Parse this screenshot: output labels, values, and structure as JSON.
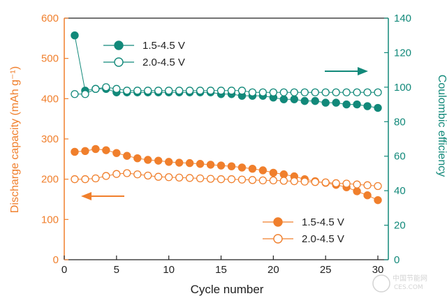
{
  "chart_data": {
    "type": "scatter",
    "title": "",
    "xlabel": "Cycle number",
    "ylabel_left": "Discharge capacity (mAh g⁻¹)",
    "ylabel_right": "Coulombic efficiency",
    "xlim": [
      0,
      31
    ],
    "ylim_left": [
      0,
      600
    ],
    "ylim_right": [
      0,
      140
    ],
    "x_ticks": [
      0,
      5,
      10,
      15,
      20,
      25,
      30
    ],
    "y_left_ticks": [
      0,
      100,
      200,
      300,
      400,
      500,
      600
    ],
    "y_right_ticks": [
      0,
      20,
      40,
      60,
      80,
      100,
      120,
      140
    ],
    "grid": false,
    "colors": {
      "capacity": "#f07f2c",
      "efficiency": "#12897a",
      "axis": "#222222"
    },
    "legend_top": [
      "1.5-4.5 V",
      "2.0-4.5 V"
    ],
    "legend_bottom": [
      "1.5-4.5 V",
      "2.0-4.5 V"
    ],
    "x": [
      1,
      2,
      3,
      4,
      5,
      6,
      7,
      8,
      9,
      10,
      11,
      12,
      13,
      14,
      15,
      16,
      17,
      18,
      19,
      20,
      21,
      22,
      23,
      24,
      25,
      26,
      27,
      28,
      29,
      30
    ],
    "series": [
      {
        "name": "1.5-4.5 V",
        "axis": "left",
        "marker": "filled",
        "color": "#f07f2c",
        "values": [
          268,
          270,
          275,
          272,
          265,
          258,
          252,
          248,
          246,
          243,
          241,
          240,
          238,
          236,
          234,
          232,
          229,
          226,
          222,
          216,
          212,
          207,
          200,
          195,
          191,
          186,
          180,
          170,
          160,
          148
        ]
      },
      {
        "name": "2.0-4.5 V",
        "axis": "left",
        "marker": "open",
        "color": "#f07f2c",
        "values": [
          200,
          200,
          202,
          208,
          213,
          215,
          212,
          209,
          206,
          205,
          204,
          203,
          202,
          201,
          200,
          200,
          199,
          198,
          197,
          197,
          196,
          195,
          194,
          193,
          192,
          190,
          189,
          187,
          185,
          183
        ]
      },
      {
        "name": "1.5-4.5 V",
        "axis": "right",
        "marker": "filled",
        "color": "#12897a",
        "values": [
          130,
          98,
          99,
          99,
          97,
          97,
          97,
          97,
          97,
          97,
          97,
          97,
          97,
          97,
          96,
          96,
          95,
          95,
          95,
          94,
          93,
          93,
          92,
          92,
          91,
          91,
          90,
          90,
          89,
          88
        ]
      },
      {
        "name": "2.0-4.5 V",
        "axis": "right",
        "marker": "open",
        "color": "#12897a",
        "values": [
          96,
          96,
          99,
          100,
          99,
          98,
          98,
          98,
          98,
          98,
          98,
          98,
          98,
          98,
          98,
          98,
          98,
          97,
          97,
          97,
          97,
          97,
          97,
          97,
          97,
          97,
          97,
          97,
          97,
          97
        ]
      }
    ],
    "watermark": "中国节能网\nCES.COM"
  }
}
